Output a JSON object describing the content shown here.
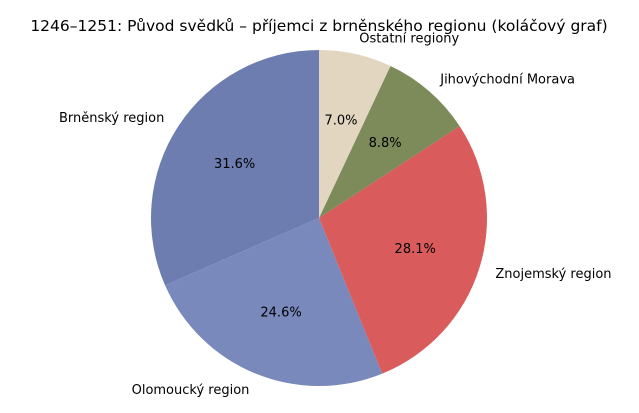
{
  "chart_data": {
    "type": "pie",
    "title": "1246–1251: Původ svědků – příjemci z brněnského regionu (koláčový graf)",
    "start_angle_deg": 90,
    "direction": "counterclockwise",
    "slices": [
      {
        "label": "Brněnský region",
        "value": 31.6,
        "pct_label": "31.6%",
        "color": "#6d7daf"
      },
      {
        "label": "Olomoucký region",
        "value": 24.6,
        "pct_label": "24.6%",
        "color": "#7a89bb"
      },
      {
        "label": "Znojemský region",
        "value": 28.1,
        "pct_label": "28.1%",
        "color": "#d95b5b"
      },
      {
        "label": "Jihovýchodní Morava",
        "value": 8.8,
        "pct_label": "8.8%",
        "color": "#7d8b5a"
      },
      {
        "label": "Ostatní regiony",
        "value": 7.0,
        "pct_label": "7.0%",
        "color": "#e2d6c1"
      }
    ]
  }
}
